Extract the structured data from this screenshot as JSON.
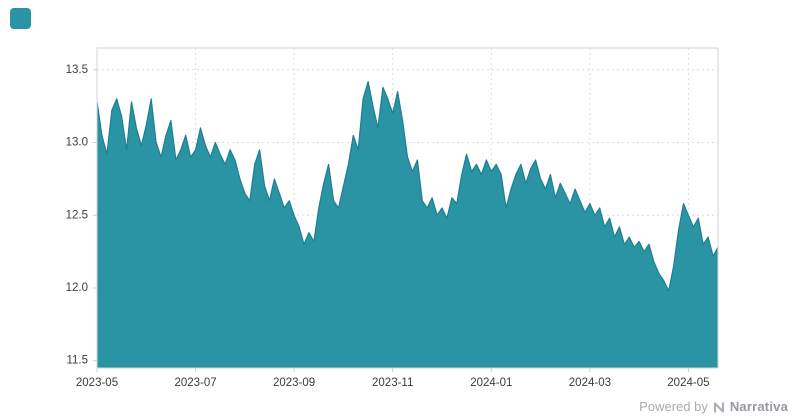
{
  "colors": {
    "accent": "#2a94a4",
    "area_fill": "#2a94a4",
    "line_stroke": "#1f7f90",
    "grid": "#dcdcdc",
    "axis_text": "#3c3c3c",
    "footer_text": "#a9a9b1"
  },
  "footer": {
    "powered_by": "Powered by",
    "brand": "Narrativa"
  },
  "chart_data": {
    "type": "area",
    "title": "",
    "xlabel": "",
    "ylabel": "",
    "ylim": [
      11.45,
      13.65
    ],
    "grid": true,
    "legend": "none",
    "y_ticks": [
      {
        "label": "11.5",
        "value": 11.5
      },
      {
        "label": "12.0",
        "value": 12.0
      },
      {
        "label": "12.5",
        "value": 12.5
      },
      {
        "label": "13.0",
        "value": 13.0
      },
      {
        "label": "13.5",
        "value": 13.5
      }
    ],
    "x_ticks": [
      {
        "label": "2023-05",
        "index": 0
      },
      {
        "label": "2023-07",
        "index": 20
      },
      {
        "label": "2023-09",
        "index": 40
      },
      {
        "label": "2023-11",
        "index": 60
      },
      {
        "label": "2024-01",
        "index": 80
      },
      {
        "label": "2024-03",
        "index": 100
      },
      {
        "label": "2024-05",
        "index": 120
      }
    ],
    "values": [
      13.28,
      13.05,
      12.92,
      13.22,
      13.3,
      13.18,
      12.95,
      13.28,
      13.1,
      12.98,
      13.12,
      13.3,
      13.0,
      12.9,
      13.05,
      13.15,
      12.88,
      12.95,
      13.05,
      12.9,
      12.95,
      13.1,
      12.98,
      12.9,
      13.0,
      12.92,
      12.85,
      12.95,
      12.88,
      12.75,
      12.65,
      12.6,
      12.85,
      12.95,
      12.7,
      12.6,
      12.75,
      12.65,
      12.55,
      12.6,
      12.5,
      12.42,
      12.3,
      12.38,
      12.32,
      12.55,
      12.72,
      12.85,
      12.6,
      12.55,
      12.7,
      12.85,
      13.05,
      12.95,
      13.3,
      13.42,
      13.25,
      13.1,
      13.38,
      13.3,
      13.2,
      13.35,
      13.15,
      12.9,
      12.8,
      12.88,
      12.6,
      12.55,
      12.62,
      12.5,
      12.55,
      12.48,
      12.62,
      12.58,
      12.78,
      12.92,
      12.8,
      12.85,
      12.78,
      12.88,
      12.8,
      12.85,
      12.78,
      12.55,
      12.68,
      12.78,
      12.85,
      12.72,
      12.82,
      12.88,
      12.75,
      12.68,
      12.78,
      12.62,
      12.72,
      12.65,
      12.58,
      12.68,
      12.6,
      12.52,
      12.58,
      12.5,
      12.55,
      12.42,
      12.48,
      12.35,
      12.42,
      12.3,
      12.35,
      12.28,
      12.32,
      12.25,
      12.3,
      12.18,
      12.1,
      12.05,
      11.98,
      12.15,
      12.4,
      12.58,
      12.5,
      12.42,
      12.48,
      12.3,
      12.35,
      12.22,
      12.28
    ]
  }
}
